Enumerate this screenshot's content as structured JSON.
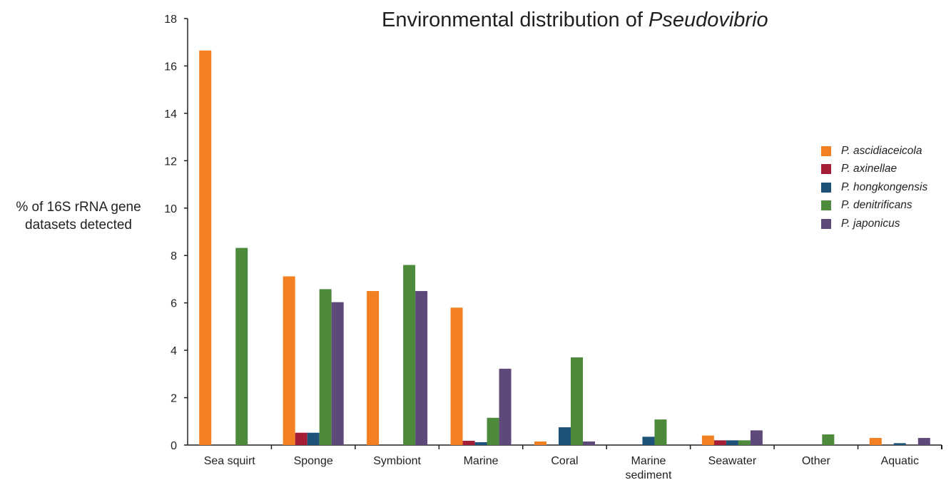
{
  "chart_data": {
    "type": "bar",
    "title": "Environmental distribution of",
    "title_italic": "Pseudovibrio",
    "ylabel_line1": "% of 16S rRNA gene",
    "ylabel_line2": "datasets detected",
    "ylim": [
      0,
      18
    ],
    "yticks": [
      "0",
      "2",
      "4",
      "6",
      "8",
      "10",
      "12",
      "14",
      "16",
      "18"
    ],
    "categories": [
      [
        "Sea squirt"
      ],
      [
        "Sponge"
      ],
      [
        "Symbiont"
      ],
      [
        "Marine"
      ],
      [
        "Coral"
      ],
      [
        "Marine",
        "sediment"
      ],
      [
        "Seawater"
      ],
      [
        "Other"
      ],
      [
        "Aquatic"
      ]
    ],
    "legend_position": "right",
    "series": [
      {
        "name": "P. ascidiaceicola",
        "color": "#f28022",
        "values": [
          16.65,
          7.12,
          6.5,
          5.8,
          0.15,
          0,
          0.4,
          0,
          0.3
        ]
      },
      {
        "name": "P. axinellae",
        "color": "#a51e37",
        "values": [
          0,
          0.52,
          0,
          0.18,
          0,
          0,
          0.2,
          0,
          0
        ]
      },
      {
        "name": "P. hongkongensis",
        "color": "#1f5279",
        "values": [
          0,
          0.52,
          0,
          0.12,
          0.75,
          0.35,
          0.2,
          0,
          0.08
        ]
      },
      {
        "name": "P. denitrificans",
        "color": "#4d8a3c",
        "values": [
          8.32,
          6.58,
          7.6,
          1.15,
          3.7,
          1.08,
          0.2,
          0.45,
          0
        ]
      },
      {
        "name": "P. japonicus",
        "color": "#5e497a",
        "values": [
          0,
          6.03,
          6.5,
          3.22,
          0.15,
          0,
          0.62,
          0,
          0.3
        ]
      }
    ]
  }
}
